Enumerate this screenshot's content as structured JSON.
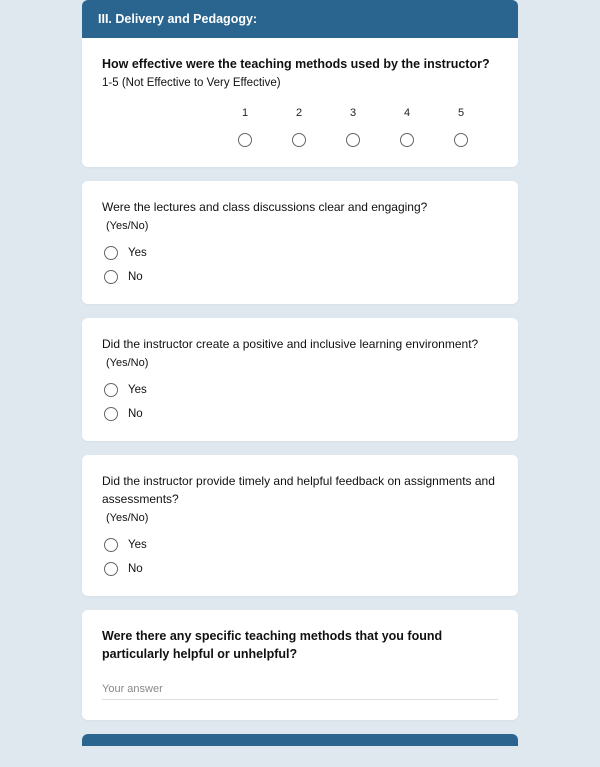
{
  "section": {
    "title": "III. Delivery and Pedagogy:"
  },
  "q1": {
    "title": "How effective were the teaching methods used by the instructor?",
    "subtitle": "1-5 (Not Effective to Very Effective)",
    "scale": [
      "1",
      "2",
      "3",
      "4",
      "5"
    ]
  },
  "q2": {
    "title": "Were the lectures and class discussions clear and engaging?",
    "subtitle": "(Yes/No)",
    "options": [
      "Yes",
      "No"
    ]
  },
  "q3": {
    "title": "Did the instructor create a positive and inclusive learning environment?",
    "subtitle": "(Yes/No)",
    "options": [
      "Yes",
      "No"
    ]
  },
  "q4": {
    "title": "Did the instructor provide timely and helpful feedback on assignments and assessments?",
    "subtitle": "(Yes/No)",
    "options": [
      "Yes",
      "No"
    ]
  },
  "q5": {
    "title": "Were there any specific teaching methods that you found particularly helpful or unhelpful?",
    "placeholder": "Your answer"
  },
  "colors": {
    "header_bg": "#29658f",
    "page_bg": "#dfe8ef",
    "card_bg": "#ffffff"
  }
}
